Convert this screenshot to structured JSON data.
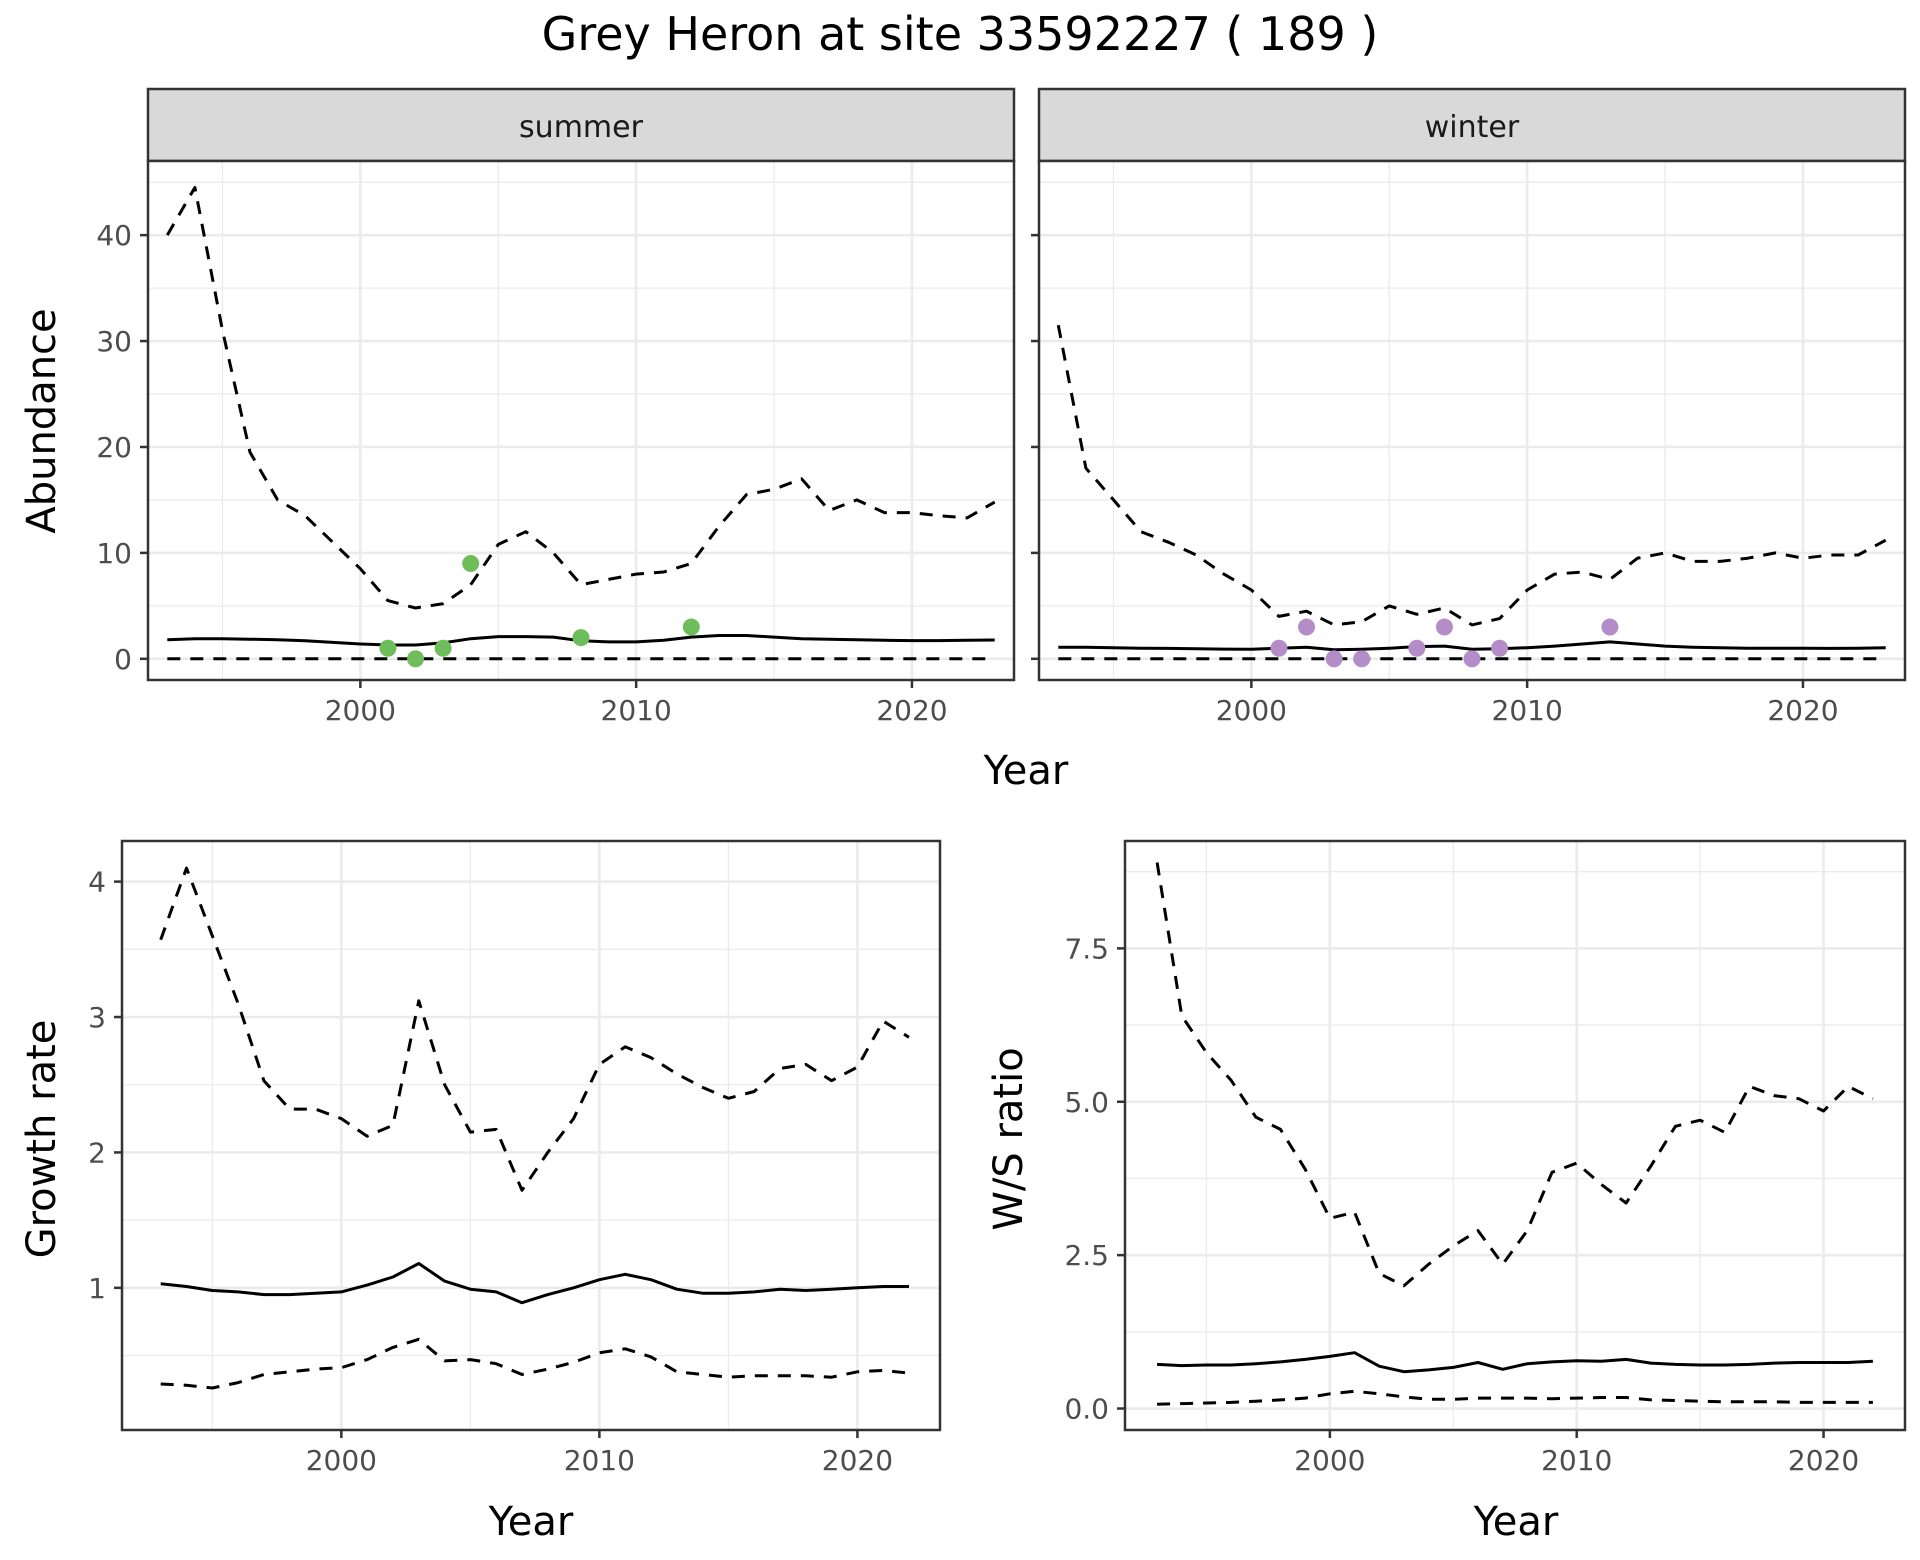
{
  "title": "Grey Heron at site 33592227 ( 189 )",
  "chart_data": [
    {
      "type": "line",
      "panel": "summer",
      "strip_label": "summer",
      "xlabel": "Year",
      "ylabel": "Abundance",
      "xlim": [
        1992.3,
        2023.7
      ],
      "ylim": [
        -2.0,
        47.0
      ],
      "x_ticks": [
        2000,
        2010,
        2020
      ],
      "y_ticks": [
        0,
        10,
        20,
        30,
        40
      ],
      "grid": true,
      "point_color": "#6dbe5a",
      "line_color": "#000000",
      "series": [
        {
          "style": "dashed",
          "x": [
            1993,
            1994,
            1995,
            1996,
            1997,
            1998,
            1999,
            2000,
            2001,
            2002,
            2003,
            2004,
            2005,
            2006,
            2007,
            2008,
            2009,
            2010,
            2011,
            2012,
            2013,
            2014,
            2015,
            2016,
            2017,
            2018,
            2019,
            2020,
            2021,
            2022,
            2023
          ],
          "y": [
            40,
            44.5,
            31,
            19.5,
            15,
            13.5,
            11,
            8.5,
            5.5,
            4.8,
            5.2,
            7,
            10.8,
            12,
            10,
            7,
            7.5,
            8,
            8.2,
            9,
            12.5,
            15.5,
            16,
            17,
            14,
            15,
            13.8,
            13.8,
            13.5,
            13.3,
            14.8
          ]
        },
        {
          "style": "solid",
          "x": [
            1993,
            1994,
            1995,
            1996,
            1997,
            1998,
            1999,
            2000,
            2001,
            2002,
            2003,
            2004,
            2005,
            2006,
            2007,
            2008,
            2009,
            2010,
            2011,
            2012,
            2013,
            2014,
            2015,
            2016,
            2017,
            2018,
            2019,
            2020,
            2021,
            2022,
            2023
          ],
          "y": [
            1.8,
            1.9,
            1.9,
            1.85,
            1.8,
            1.7,
            1.55,
            1.4,
            1.3,
            1.3,
            1.5,
            1.9,
            2.1,
            2.1,
            2.05,
            1.7,
            1.6,
            1.6,
            1.75,
            2.05,
            2.2,
            2.2,
            2.05,
            1.9,
            1.85,
            1.8,
            1.75,
            1.72,
            1.72,
            1.75,
            1.78
          ]
        },
        {
          "style": "dashed",
          "x": [
            1993,
            2023
          ],
          "y": [
            0,
            0
          ]
        }
      ],
      "points": {
        "x": [
          2001,
          2002,
          2003,
          2004,
          2008,
          2012
        ],
        "y": [
          1,
          0,
          1,
          9,
          2,
          3
        ]
      }
    },
    {
      "type": "line",
      "panel": "winter",
      "strip_label": "winter",
      "xlabel": "Year",
      "ylabel": "Abundance",
      "xlim": [
        1992.3,
        2023.7
      ],
      "ylim": [
        -2.0,
        47.0
      ],
      "x_ticks": [
        2000,
        2010,
        2020
      ],
      "y_ticks": [
        0,
        10,
        20,
        30,
        40
      ],
      "grid": true,
      "point_color": "#b48cc8",
      "line_color": "#000000",
      "series": [
        {
          "style": "dashed",
          "x": [
            1993,
            1994,
            1995,
            1996,
            1997,
            1998,
            1999,
            2000,
            2001,
            2002,
            2003,
            2004,
            2005,
            2006,
            2007,
            2008,
            2009,
            2010,
            2011,
            2012,
            2013,
            2014,
            2015,
            2016,
            2017,
            2018,
            2019,
            2020,
            2021,
            2022,
            2023
          ],
          "y": [
            31.5,
            18,
            15,
            12,
            11,
            9.8,
            8,
            6.5,
            4,
            4.5,
            3.2,
            3.5,
            5,
            4.2,
            4.8,
            3.2,
            3.8,
            6.5,
            8,
            8.2,
            7.5,
            9.5,
            10,
            9.2,
            9.2,
            9.5,
            10,
            9.5,
            9.8,
            9.8,
            11.2
          ]
        },
        {
          "style": "solid",
          "x": [
            1993,
            1994,
            1995,
            1996,
            1997,
            1998,
            1999,
            2000,
            2001,
            2002,
            2003,
            2004,
            2005,
            2006,
            2007,
            2008,
            2009,
            2010,
            2011,
            2012,
            2013,
            2014,
            2015,
            2016,
            2017,
            2018,
            2019,
            2020,
            2021,
            2022,
            2023
          ],
          "y": [
            1.1,
            1.1,
            1.05,
            1.0,
            0.98,
            0.95,
            0.92,
            0.9,
            1.0,
            1.1,
            0.85,
            0.9,
            1.0,
            1.15,
            1.2,
            0.9,
            0.95,
            1.05,
            1.2,
            1.4,
            1.6,
            1.4,
            1.2,
            1.1,
            1.05,
            1.0,
            1.0,
            1.0,
            0.98,
            1.0,
            1.05
          ]
        },
        {
          "style": "dashed",
          "x": [
            1993,
            2023
          ],
          "y": [
            0,
            0
          ]
        }
      ],
      "points": {
        "x": [
          2001,
          2002,
          2003,
          2004,
          2006,
          2007,
          2008,
          2009,
          2013
        ],
        "y": [
          1,
          3,
          0,
          0,
          1,
          3,
          0,
          1,
          3
        ]
      }
    },
    {
      "type": "line",
      "panel": "growth",
      "xlabel": "Year",
      "ylabel": "Growth rate",
      "xlim": [
        1991.5,
        2023.2
      ],
      "ylim": [
        -0.05,
        4.3
      ],
      "x_ticks": [
        2000,
        2010,
        2020
      ],
      "y_ticks": [
        1,
        2,
        3,
        4
      ],
      "grid": true,
      "line_color": "#000000",
      "series": [
        {
          "style": "dashed",
          "x": [
            1993,
            1994,
            1995,
            1996,
            1997,
            1998,
            1999,
            2000,
            2001,
            2002,
            2003,
            2004,
            2005,
            2006,
            2007,
            2008,
            2009,
            2010,
            2011,
            2012,
            2013,
            2014,
            2015,
            2016,
            2017,
            2018,
            2019,
            2020,
            2021,
            2022
          ],
          "y": [
            3.57,
            4.1,
            3.6,
            3.1,
            2.53,
            2.32,
            2.32,
            2.25,
            2.12,
            2.2,
            3.12,
            2.5,
            2.15,
            2.17,
            1.72,
            2.0,
            2.25,
            2.65,
            2.78,
            2.7,
            2.58,
            2.48,
            2.4,
            2.45,
            2.62,
            2.65,
            2.53,
            2.63,
            2.97,
            2.85
          ]
        },
        {
          "style": "solid",
          "x": [
            1993,
            1994,
            1995,
            1996,
            1997,
            1998,
            1999,
            2000,
            2001,
            2002,
            2003,
            2004,
            2005,
            2006,
            2007,
            2008,
            2009,
            2010,
            2011,
            2012,
            2013,
            2014,
            2015,
            2016,
            2017,
            2018,
            2019,
            2020,
            2021,
            2022
          ],
          "y": [
            1.03,
            1.01,
            0.98,
            0.97,
            0.95,
            0.95,
            0.96,
            0.97,
            1.02,
            1.08,
            1.18,
            1.05,
            0.99,
            0.97,
            0.89,
            0.95,
            1.0,
            1.06,
            1.1,
            1.06,
            0.99,
            0.96,
            0.96,
            0.97,
            0.99,
            0.98,
            0.99,
            1.0,
            1.01,
            1.01
          ]
        },
        {
          "style": "dashed",
          "x": [
            1993,
            1994,
            1995,
            1996,
            1997,
            1998,
            1999,
            2000,
            2001,
            2002,
            2003,
            2004,
            2005,
            2006,
            2007,
            2008,
            2009,
            2010,
            2011,
            2012,
            2013,
            2014,
            2015,
            2016,
            2017,
            2018,
            2019,
            2020,
            2021,
            2022
          ],
          "y": [
            0.29,
            0.28,
            0.26,
            0.3,
            0.36,
            0.38,
            0.4,
            0.41,
            0.47,
            0.56,
            0.62,
            0.46,
            0.47,
            0.44,
            0.36,
            0.4,
            0.45,
            0.52,
            0.55,
            0.49,
            0.38,
            0.36,
            0.34,
            0.35,
            0.35,
            0.35,
            0.34,
            0.38,
            0.39,
            0.37
          ]
        }
      ]
    },
    {
      "type": "line",
      "panel": "ratio",
      "xlabel": "Year",
      "ylabel": "W/S ratio",
      "xlim": [
        1991.7,
        2023.3
      ],
      "ylim": [
        -0.35,
        9.25
      ],
      "x_ticks": [
        2000,
        2010,
        2020
      ],
      "y_ticks": [
        0.0,
        2.5,
        5.0,
        7.5
      ],
      "y_tick_labels": [
        "0.0",
        "2.5",
        "5.0",
        "7.5"
      ],
      "grid": true,
      "line_color": "#000000",
      "series": [
        {
          "style": "dashed",
          "x": [
            1993,
            1994,
            1995,
            1996,
            1997,
            1998,
            1999,
            2000,
            2001,
            2002,
            2003,
            2004,
            2005,
            2006,
            2007,
            2008,
            2009,
            2010,
            2011,
            2012,
            2013,
            2014,
            2015,
            2016,
            2017,
            2018,
            2019,
            2020,
            2021,
            2022
          ],
          "y": [
            8.9,
            6.4,
            5.8,
            5.35,
            4.75,
            4.55,
            3.9,
            3.1,
            3.2,
            2.2,
            2.0,
            2.35,
            2.65,
            2.9,
            2.35,
            2.9,
            3.85,
            4.0,
            3.65,
            3.35,
            3.95,
            4.6,
            4.7,
            4.5,
            5.25,
            5.1,
            5.05,
            4.85,
            5.25,
            5.05
          ]
        },
        {
          "style": "solid",
          "x": [
            1993,
            1994,
            1995,
            1996,
            1997,
            1998,
            1999,
            2000,
            2001,
            2002,
            2003,
            2004,
            2005,
            2006,
            2007,
            2008,
            2009,
            2010,
            2011,
            2012,
            2013,
            2014,
            2015,
            2016,
            2017,
            2018,
            2019,
            2020,
            2021,
            2022
          ],
          "y": [
            0.72,
            0.7,
            0.71,
            0.71,
            0.73,
            0.76,
            0.8,
            0.85,
            0.91,
            0.69,
            0.6,
            0.63,
            0.67,
            0.75,
            0.64,
            0.73,
            0.76,
            0.78,
            0.77,
            0.8,
            0.74,
            0.72,
            0.71,
            0.71,
            0.72,
            0.74,
            0.75,
            0.75,
            0.75,
            0.77
          ]
        },
        {
          "style": "dashed",
          "x": [
            1993,
            1994,
            1995,
            1996,
            1997,
            1998,
            1999,
            2000,
            2001,
            2002,
            2003,
            2004,
            2005,
            2006,
            2007,
            2008,
            2009,
            2010,
            2011,
            2012,
            2013,
            2014,
            2015,
            2016,
            2017,
            2018,
            2019,
            2020,
            2021,
            2022
          ],
          "y": [
            0.07,
            0.08,
            0.09,
            0.1,
            0.12,
            0.14,
            0.17,
            0.24,
            0.28,
            0.24,
            0.19,
            0.15,
            0.15,
            0.17,
            0.17,
            0.17,
            0.16,
            0.17,
            0.18,
            0.18,
            0.14,
            0.13,
            0.12,
            0.11,
            0.11,
            0.11,
            0.1,
            0.1,
            0.1,
            0.1
          ]
        }
      ]
    }
  ]
}
